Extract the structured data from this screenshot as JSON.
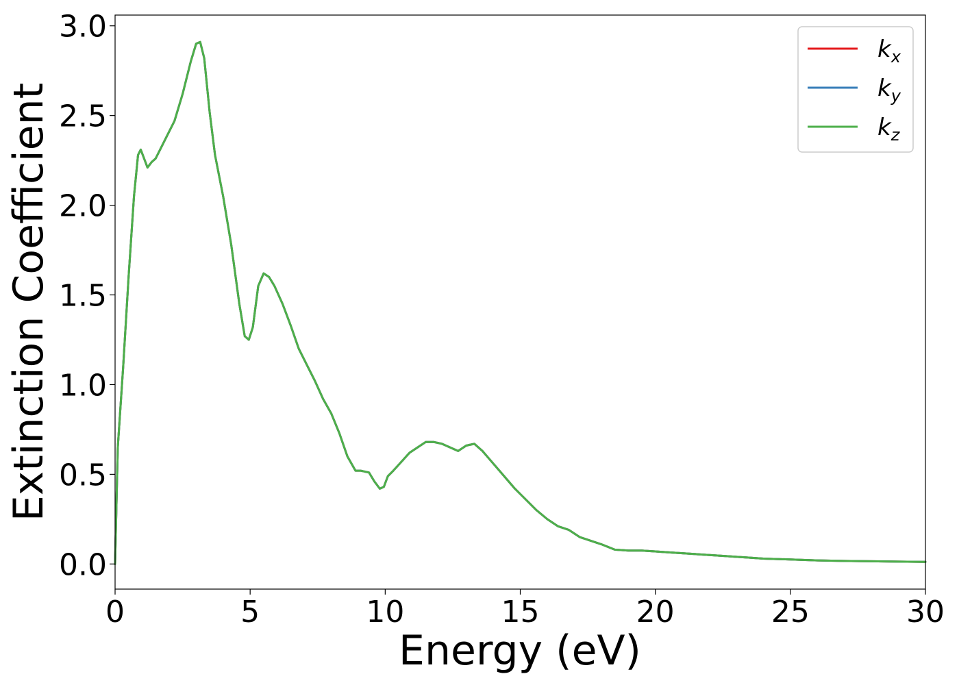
{
  "chart_data": {
    "type": "line",
    "title": "",
    "xlabel": "Energy (eV)",
    "ylabel": "Extinction Coefficient",
    "xlim": [
      0,
      30
    ],
    "ylim": [
      -0.14,
      3.06
    ],
    "xticks": [
      0,
      5,
      10,
      15,
      20,
      25,
      30
    ],
    "xtick_labels": [
      "0",
      "5",
      "10",
      "15",
      "20",
      "25",
      "30"
    ],
    "yticks": [
      0.0,
      0.5,
      1.0,
      1.5,
      2.0,
      2.5,
      3.0
    ],
    "ytick_labels": [
      "0.0",
      "0.5",
      "1.0",
      "1.5",
      "2.0",
      "2.5",
      "3.0"
    ],
    "grid": false,
    "legend_position": "top-right",
    "x": [
      0,
      0.1,
      0.3,
      0.5,
      0.7,
      0.85,
      0.95,
      1.05,
      1.2,
      1.35,
      1.5,
      1.7,
      1.9,
      2.2,
      2.5,
      2.8,
      3.0,
      3.15,
      3.3,
      3.5,
      3.7,
      4.0,
      4.3,
      4.6,
      4.8,
      4.95,
      5.1,
      5.3,
      5.5,
      5.7,
      5.9,
      6.2,
      6.5,
      6.8,
      7.1,
      7.4,
      7.7,
      8.0,
      8.3,
      8.6,
      8.9,
      9.1,
      9.4,
      9.6,
      9.8,
      9.95,
      10.1,
      10.3,
      10.6,
      10.9,
      11.2,
      11.5,
      11.8,
      12.1,
      12.4,
      12.7,
      13.0,
      13.3,
      13.6,
      14.0,
      14.4,
      14.8,
      15.2,
      15.6,
      16.0,
      16.4,
      16.8,
      17.2,
      17.6,
      18.0,
      18.5,
      19.0,
      19.5,
      20.0,
      20.5,
      21.0,
      21.5,
      22.0,
      22.5,
      23.0,
      23.5,
      24.0,
      25.0,
      26.0,
      27.0,
      28.0,
      29.0,
      30.0
    ],
    "series": [
      {
        "name": "k_x",
        "color": "#e41a1c",
        "y": [
          0.0,
          0.65,
          1.1,
          1.6,
          2.05,
          2.28,
          2.31,
          2.27,
          2.21,
          2.24,
          2.26,
          2.32,
          2.38,
          2.47,
          2.62,
          2.8,
          2.9,
          2.91,
          2.82,
          2.52,
          2.28,
          2.05,
          1.78,
          1.45,
          1.27,
          1.25,
          1.32,
          1.55,
          1.62,
          1.6,
          1.55,
          1.45,
          1.33,
          1.2,
          1.11,
          1.02,
          0.92,
          0.84,
          0.73,
          0.6,
          0.52,
          0.52,
          0.51,
          0.46,
          0.42,
          0.43,
          0.49,
          0.52,
          0.57,
          0.62,
          0.65,
          0.68,
          0.68,
          0.67,
          0.65,
          0.63,
          0.66,
          0.67,
          0.63,
          0.56,
          0.49,
          0.42,
          0.36,
          0.3,
          0.25,
          0.21,
          0.19,
          0.15,
          0.13,
          0.11,
          0.08,
          0.075,
          0.075,
          0.07,
          0.065,
          0.06,
          0.055,
          0.05,
          0.045,
          0.04,
          0.035,
          0.03,
          0.025,
          0.02,
          0.017,
          0.015,
          0.013,
          0.012
        ]
      },
      {
        "name": "k_y",
        "color": "#377eb8",
        "y": [
          0.0,
          0.65,
          1.1,
          1.6,
          2.05,
          2.28,
          2.31,
          2.27,
          2.21,
          2.24,
          2.26,
          2.32,
          2.38,
          2.47,
          2.62,
          2.8,
          2.9,
          2.91,
          2.82,
          2.52,
          2.28,
          2.05,
          1.78,
          1.45,
          1.27,
          1.25,
          1.32,
          1.55,
          1.62,
          1.6,
          1.55,
          1.45,
          1.33,
          1.2,
          1.11,
          1.02,
          0.92,
          0.84,
          0.73,
          0.6,
          0.52,
          0.52,
          0.51,
          0.46,
          0.42,
          0.43,
          0.49,
          0.52,
          0.57,
          0.62,
          0.65,
          0.68,
          0.68,
          0.67,
          0.65,
          0.63,
          0.66,
          0.67,
          0.63,
          0.56,
          0.49,
          0.42,
          0.36,
          0.3,
          0.25,
          0.21,
          0.19,
          0.15,
          0.13,
          0.11,
          0.08,
          0.075,
          0.075,
          0.07,
          0.065,
          0.06,
          0.055,
          0.05,
          0.045,
          0.04,
          0.035,
          0.03,
          0.025,
          0.02,
          0.017,
          0.015,
          0.013,
          0.012
        ]
      },
      {
        "name": "k_z",
        "color": "#4daf4a",
        "y": [
          0.0,
          0.65,
          1.1,
          1.6,
          2.05,
          2.28,
          2.31,
          2.27,
          2.21,
          2.24,
          2.26,
          2.32,
          2.38,
          2.47,
          2.62,
          2.8,
          2.9,
          2.91,
          2.82,
          2.52,
          2.28,
          2.05,
          1.78,
          1.45,
          1.27,
          1.25,
          1.32,
          1.55,
          1.62,
          1.6,
          1.55,
          1.45,
          1.33,
          1.2,
          1.11,
          1.02,
          0.92,
          0.84,
          0.73,
          0.6,
          0.52,
          0.52,
          0.51,
          0.46,
          0.42,
          0.43,
          0.49,
          0.52,
          0.57,
          0.62,
          0.65,
          0.68,
          0.68,
          0.67,
          0.65,
          0.63,
          0.66,
          0.67,
          0.63,
          0.56,
          0.49,
          0.42,
          0.36,
          0.3,
          0.25,
          0.21,
          0.19,
          0.15,
          0.13,
          0.11,
          0.08,
          0.075,
          0.075,
          0.07,
          0.065,
          0.06,
          0.055,
          0.05,
          0.045,
          0.04,
          0.035,
          0.03,
          0.025,
          0.02,
          0.017,
          0.015,
          0.013,
          0.012
        ]
      }
    ],
    "legend": [
      {
        "base": "k",
        "sub": "x",
        "color": "#e41a1c"
      },
      {
        "base": "k",
        "sub": "y",
        "color": "#377eb8"
      },
      {
        "base": "k",
        "sub": "z",
        "color": "#4daf4a"
      }
    ]
  }
}
